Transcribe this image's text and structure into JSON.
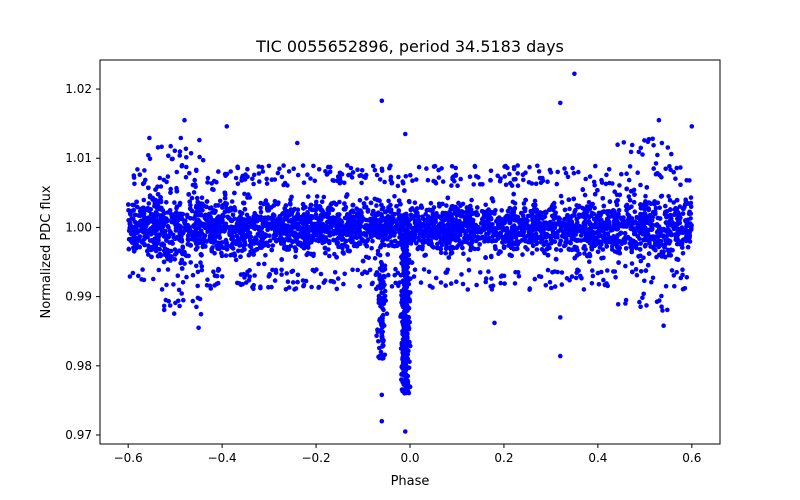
{
  "chart_data": {
    "type": "scatter",
    "title": "TIC 0055652896, period 34.5183 days",
    "xlabel": "Phase",
    "ylabel": "Normalized PDC flux",
    "xlim": [
      -0.66,
      0.66
    ],
    "ylim": [
      0.9687,
      1.0242
    ],
    "xticks": [
      -0.6,
      -0.4,
      -0.2,
      0.0,
      0.2,
      0.4,
      0.6
    ],
    "xtick_labels": [
      "−0.6",
      "−0.4",
      "−0.2",
      "0.0",
      "0.2",
      "0.4",
      "0.6"
    ],
    "yticks": [
      0.97,
      0.98,
      0.99,
      1.0,
      1.01,
      1.02
    ],
    "ytick_labels": [
      "0.97",
      "0.98",
      "0.99",
      "1.00",
      "1.01",
      "1.02"
    ],
    "grid": false,
    "marker_color": "#0000ff",
    "phase_range": [
      -0.6,
      0.6
    ],
    "baseline_flux": 1.0,
    "baseline_scatter_typical": 0.0045,
    "transit_dips": [
      {
        "phase": -0.01,
        "min_flux": 0.9705
      },
      {
        "phase": -0.06,
        "min_flux": 0.9718
      }
    ],
    "outliers": [
      {
        "x": 0.35,
        "y": 1.0222
      },
      {
        "x": 0.32,
        "y": 1.018
      },
      {
        "x": -0.06,
        "y": 1.0183
      },
      {
        "x": -0.48,
        "y": 1.0155
      },
      {
        "x": 0.53,
        "y": 1.0155
      },
      {
        "x": -0.39,
        "y": 1.0146
      },
      {
        "x": 0.6,
        "y": 1.0146
      },
      {
        "x": -0.01,
        "y": 1.0135
      },
      {
        "x": -0.24,
        "y": 1.0122
      },
      {
        "x": -0.06,
        "y": 0.9758
      },
      {
        "x": -0.06,
        "y": 0.972
      },
      {
        "x": -0.01,
        "y": 0.9705
      },
      {
        "x": 0.32,
        "y": 0.9814
      },
      {
        "x": 0.32,
        "y": 0.987
      },
      {
        "x": -0.45,
        "y": 0.9855
      },
      {
        "x": 0.54,
        "y": 0.9858
      },
      {
        "x": 0.18,
        "y": 0.9862
      },
      {
        "x": -0.52,
        "y": 0.9895
      },
      {
        "x": 0.46,
        "y": 0.9895
      }
    ]
  }
}
